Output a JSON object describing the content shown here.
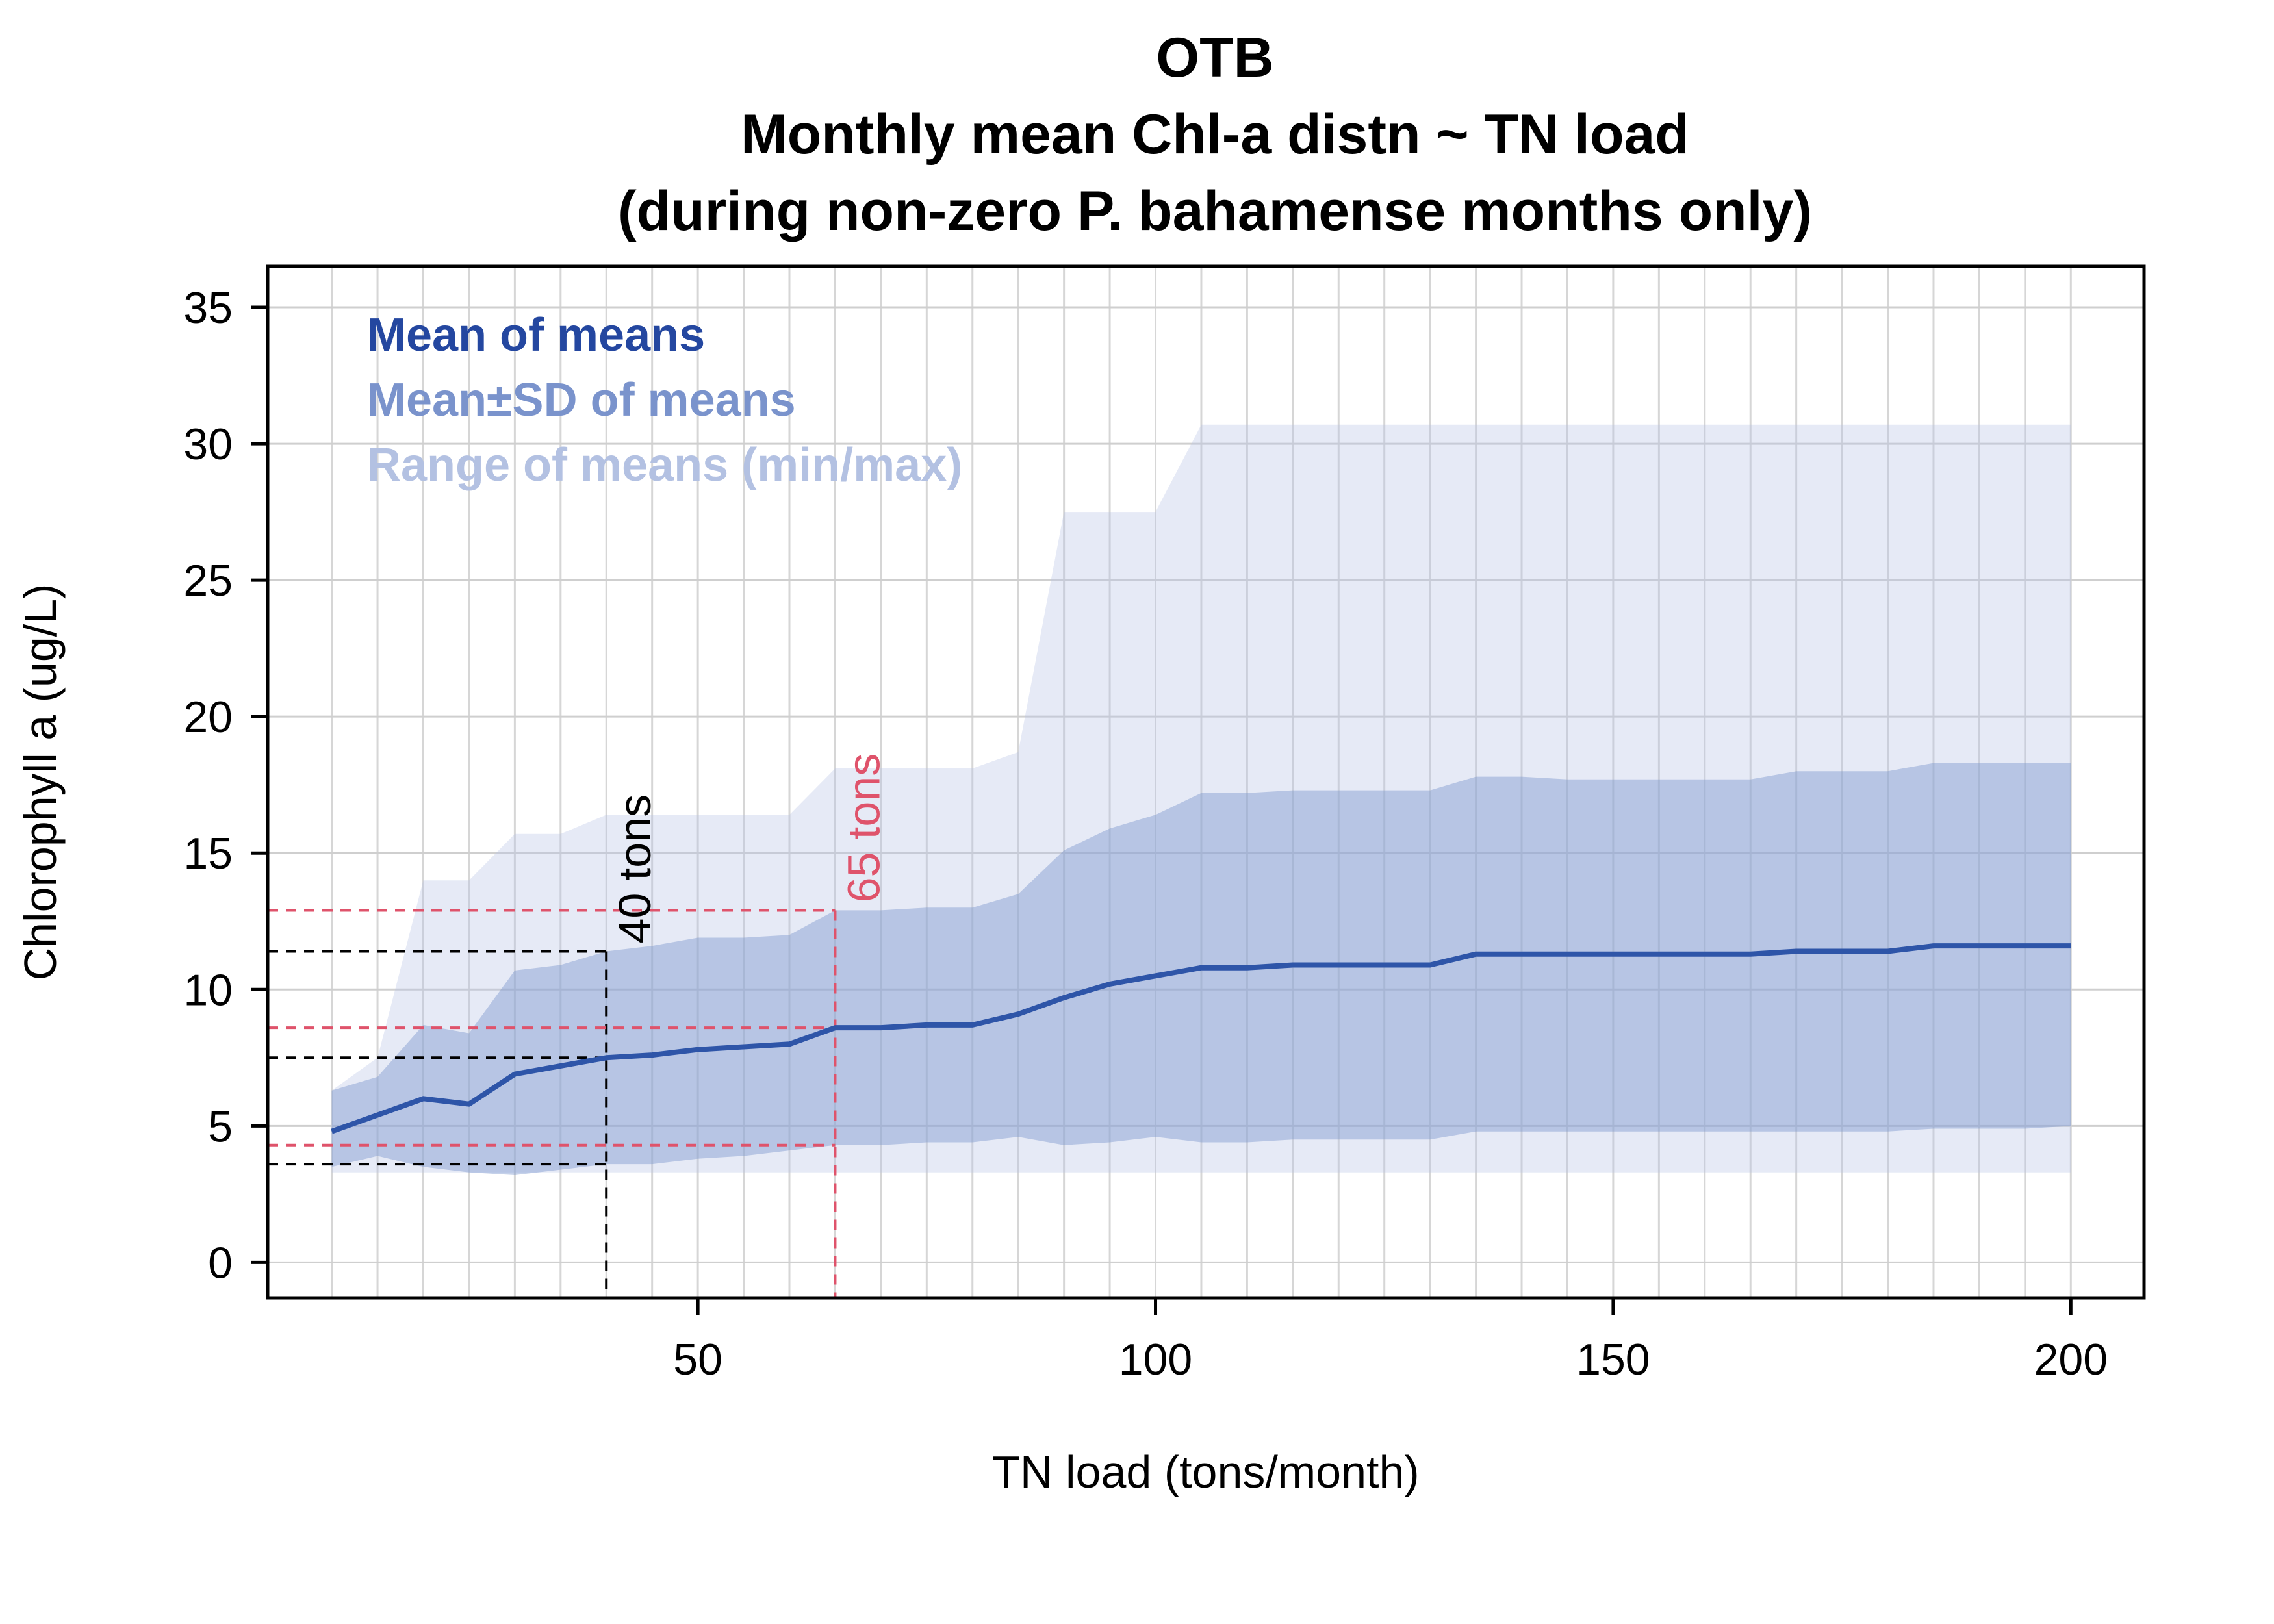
{
  "chart_data": {
    "type": "area",
    "title": [
      "OTB",
      "Monthly mean Chl-a distn ~ TN load",
      "(during non-zero P. bahamense months only)"
    ],
    "xlabel": "TN load (tons/month)",
    "ylabel": "Chlorophyll a (ug/L)",
    "xlim": [
      3,
      208
    ],
    "ylim": [
      -1.3,
      36.5
    ],
    "xticks": [
      50,
      100,
      150,
      200
    ],
    "yticks": [
      0,
      5,
      10,
      15,
      20,
      25,
      30,
      35
    ],
    "grid": true,
    "x": [
      10,
      15,
      20,
      25,
      30,
      35,
      40,
      45,
      50,
      55,
      60,
      65,
      70,
      75,
      80,
      85,
      90,
      95,
      100,
      105,
      110,
      115,
      120,
      125,
      130,
      135,
      140,
      145,
      150,
      155,
      160,
      165,
      170,
      175,
      180,
      185,
      190,
      195,
      200
    ],
    "series": [
      {
        "name": "Mean of means",
        "color": "#2e55a8",
        "values": [
          4.8,
          5.4,
          6.0,
          5.8,
          6.9,
          7.2,
          7.5,
          7.6,
          7.8,
          7.9,
          8.0,
          8.6,
          8.6,
          8.7,
          8.7,
          9.1,
          9.7,
          10.2,
          10.5,
          10.8,
          10.8,
          10.9,
          10.9,
          10.9,
          10.9,
          11.3,
          11.3,
          11.3,
          11.3,
          11.3,
          11.3,
          11.3,
          11.4,
          11.4,
          11.4,
          11.6,
          11.6,
          11.6,
          11.6
        ]
      },
      {
        "name": "Mean±SD of means",
        "color": "#7f99cf",
        "upper": [
          6.3,
          6.8,
          8.7,
          8.4,
          10.7,
          10.9,
          11.4,
          11.6,
          11.9,
          11.9,
          12.0,
          12.9,
          12.9,
          13.0,
          13.0,
          13.5,
          15.1,
          15.9,
          16.4,
          17.2,
          17.2,
          17.3,
          17.3,
          17.3,
          17.3,
          17.8,
          17.8,
          17.7,
          17.7,
          17.7,
          17.7,
          17.7,
          18.0,
          18.0,
          18.0,
          18.3,
          18.3,
          18.3,
          18.3
        ],
        "lower": [
          3.5,
          3.9,
          3.5,
          3.3,
          3.2,
          3.4,
          3.6,
          3.6,
          3.8,
          3.9,
          4.1,
          4.3,
          4.3,
          4.4,
          4.4,
          4.6,
          4.3,
          4.4,
          4.6,
          4.4,
          4.4,
          4.5,
          4.5,
          4.5,
          4.5,
          4.8,
          4.8,
          4.8,
          4.8,
          4.8,
          4.8,
          4.8,
          4.8,
          4.8,
          4.8,
          4.9,
          4.9,
          4.9,
          5.0
        ]
      },
      {
        "name": "Range of means (min/max)",
        "color": "#b6c4e4",
        "upper": [
          6.3,
          7.5,
          14.0,
          14.0,
          15.7,
          15.7,
          16.4,
          16.4,
          16.4,
          16.4,
          16.4,
          18.1,
          18.1,
          18.1,
          18.1,
          18.7,
          27.5,
          27.5,
          27.5,
          30.7,
          30.7,
          30.7,
          30.7,
          30.7,
          30.7,
          30.7,
          30.7,
          30.7,
          30.7,
          30.7,
          30.7,
          30.7,
          30.7,
          30.7,
          30.7,
          30.7,
          30.7,
          30.7,
          30.7
        ],
        "lower": [
          3.3,
          3.3,
          3.3,
          3.3,
          3.3,
          3.3,
          3.3,
          3.3,
          3.3,
          3.3,
          3.3,
          3.3,
          3.3,
          3.3,
          3.3,
          3.3,
          3.3,
          3.3,
          3.3,
          3.3,
          3.3,
          3.3,
          3.3,
          3.3,
          3.3,
          3.3,
          3.3,
          3.3,
          3.3,
          3.3,
          3.3,
          3.3,
          3.3,
          3.3,
          3.3,
          3.3,
          3.3,
          3.3,
          3.3
        ]
      }
    ],
    "legend_placement": "top-left",
    "annotations": [
      {
        "label": "40 tons",
        "x": 40,
        "y_levels": [
          11.4,
          7.5,
          3.6
        ],
        "color": "#000000"
      },
      {
        "label": "65 tons",
        "x": 65,
        "y_levels": [
          12.9,
          8.6,
          4.3
        ],
        "color": "#df536b"
      }
    ]
  }
}
